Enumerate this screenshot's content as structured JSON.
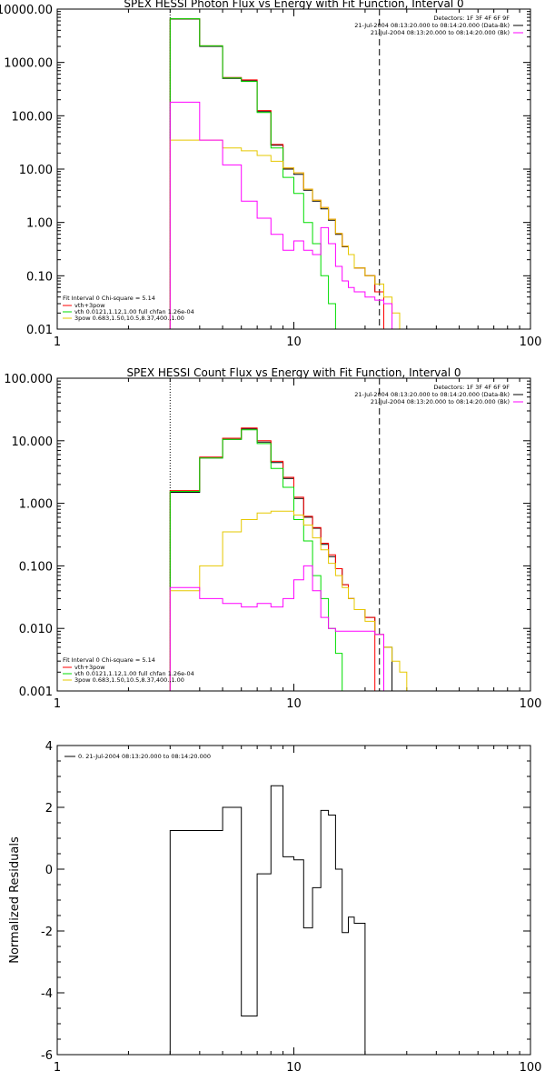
{
  "chart_data": [
    {
      "type": "line",
      "title": "SPEX HESSI Photon Flux vs Energy with Fit Function, Interval 0",
      "xscale": "log",
      "yscale": "log",
      "xlim": [
        1,
        100
      ],
      "ylim": [
        0.01,
        10000
      ],
      "x_ticks": [
        "1",
        "10",
        "100"
      ],
      "y_ticks": [
        "0.01",
        "0.10",
        "1.00",
        "10.00",
        "100.00",
        "1000.00",
        "10000.00"
      ],
      "legend_top_right": [
        "Detectors: 1F 3F 4F 6F 9F",
        "21-Jul-2004 08:13:20.000 to 08:14:20.000 (Data-Bk)",
        "21-Jul-2004 08:13:20.000 to 08:14:20.000 (Bk)"
      ],
      "legend_bottom_left": {
        "header": "Fit Interval 0    Chi-square = 5.14",
        "entries": [
          {
            "label": "vth+3pow",
            "color": "#ff0000"
          },
          {
            "label": "vth 0.0121,1.12,1.00  full chfan 1.26e-04",
            "color": "#00dd00"
          },
          {
            "label": "3pow 0.683,1.50,10.5,8.37,400.,1.00",
            "color": "#e6c800"
          }
        ]
      },
      "vlines": [
        {
          "x": 3,
          "style": "dotted"
        },
        {
          "x": 23,
          "style": "dashed"
        }
      ],
      "edges": [
        3,
        4,
        5,
        6,
        7,
        8,
        9,
        10,
        11,
        12,
        13,
        14,
        15,
        16,
        17,
        18,
        20,
        22,
        24,
        26,
        28,
        30
      ],
      "series": [
        {
          "name": "Data-Bk",
          "color": "#000000",
          "values": [
            6500,
            2000,
            500,
            450,
            120,
            28,
            10,
            8,
            4,
            2.5,
            1.8,
            1.1,
            0.6,
            0.35,
            0.25,
            0.14,
            0.1,
            0.05,
            0.01
          ]
        },
        {
          "name": "vth+3pow",
          "color": "#ff0000",
          "values": [
            6600,
            2050,
            520,
            470,
            125,
            29,
            10.5,
            8.5,
            4.2,
            2.6,
            1.9,
            1.15,
            0.62,
            0.36,
            0.25,
            0.14,
            0.1,
            0.05
          ]
        },
        {
          "name": "vth",
          "color": "#00dd00",
          "values": [
            6600,
            2050,
            510,
            440,
            115,
            25,
            7,
            3.5,
            1,
            0.4,
            0.1,
            0.03,
            0.01
          ]
        },
        {
          "name": "3pow",
          "color": "#e6c800",
          "values": [
            35,
            35,
            25,
            22,
            18,
            14,
            10.5,
            8.5,
            4.2,
            2.6,
            1.9,
            1.15,
            0.62,
            0.36,
            0.25,
            0.14,
            0.1,
            0.07,
            0.04,
            0.02,
            0.01
          ]
        },
        {
          "name": "Bk",
          "color": "#ff00ff",
          "values": [
            180,
            35,
            12,
            2.5,
            1.2,
            0.6,
            0.3,
            0.45,
            0.3,
            0.25,
            0.8,
            0.4,
            0.15,
            0.08,
            0.06,
            0.05,
            0.04,
            0.035,
            0.03,
            0.01
          ]
        }
      ]
    },
    {
      "type": "line",
      "title": "SPEX HESSI Count Flux vs Energy with Fit Function, Interval 0",
      "xscale": "log",
      "yscale": "log",
      "xlim": [
        1,
        100
      ],
      "ylim": [
        0.001,
        100
      ],
      "x_ticks": [
        "1",
        "10",
        "100"
      ],
      "y_ticks": [
        "0.001",
        "0.010",
        "0.100",
        "1.000",
        "10.000",
        "100.000"
      ],
      "legend_top_right": [
        "Detectors: 1F 3F 4F 6F 9F",
        "21-Jul-2004 08:13:20.000 to 08:14:20.000 (Data-Bk)",
        "21-Jul-2004 08:13:20.000 to 08:14:20.000 (Bk)"
      ],
      "legend_bottom_left": {
        "header": "Fit Interval 0    Chi-square = 5.14",
        "entries": [
          {
            "label": "vth+3pow",
            "color": "#ff0000"
          },
          {
            "label": "vth 0.0121,1.12,1.00  full chfan 1.26e-04",
            "color": "#00dd00"
          },
          {
            "label": "3pow 0.683,1.50,10.5,8.37,400.,1.00",
            "color": "#e6c800"
          }
        ]
      },
      "vlines": [
        {
          "x": 3,
          "style": "dotted"
        },
        {
          "x": 23,
          "style": "dashed"
        }
      ],
      "edges": [
        3,
        4,
        5,
        6,
        7,
        8,
        9,
        10,
        11,
        12,
        13,
        14,
        15,
        16,
        17,
        18,
        20,
        22,
        24,
        26,
        28,
        30
      ],
      "series": [
        {
          "name": "Data-Bk",
          "color": "#000000",
          "values": [
            1.5,
            5.3,
            10.5,
            15.5,
            9.5,
            4.5,
            2.5,
            1.2,
            0.6,
            0.4,
            0.22,
            0.14,
            0.09,
            0.05,
            0.03,
            0.02,
            0.015,
            0.008,
            0.005,
            0.001
          ]
        },
        {
          "name": "vth+3pow",
          "color": "#ff0000",
          "values": [
            1.6,
            5.5,
            11,
            16,
            10,
            4.7,
            2.6,
            1.25,
            0.62,
            0.41,
            0.23,
            0.15,
            0.09,
            0.05,
            0.03,
            0.02,
            0.015
          ]
        },
        {
          "name": "vth",
          "color": "#00dd00",
          "values": [
            1.55,
            5.3,
            10.5,
            15,
            9,
            3.6,
            1.8,
            0.55,
            0.25,
            0.07,
            0.03,
            0.01,
            0.004,
            0.001
          ]
        },
        {
          "name": "3pow",
          "color": "#e6c800",
          "values": [
            0.04,
            0.1,
            0.35,
            0.55,
            0.7,
            0.75,
            0.75,
            0.65,
            0.45,
            0.28,
            0.18,
            0.11,
            0.07,
            0.045,
            0.03,
            0.02,
            0.013,
            0.008,
            0.005,
            0.003,
            0.002,
            0.001
          ]
        },
        {
          "name": "Bk",
          "color": "#ff00ff",
          "values": [
            0.045,
            0.03,
            0.025,
            0.022,
            0.025,
            0.022,
            0.03,
            0.06,
            0.1,
            0.04,
            0.015,
            0.01,
            0.009,
            0.009,
            0.009,
            0.009,
            0.009,
            0.008,
            0.001
          ]
        }
      ]
    },
    {
      "type": "line",
      "title": "",
      "xscale": "log",
      "xlim": [
        1,
        100
      ],
      "ylim": [
        -6,
        4
      ],
      "x_ticks": [
        "1",
        "10",
        "100"
      ],
      "y_ticks": [
        "-6",
        "-4",
        "-2",
        "0",
        "2",
        "4"
      ],
      "ylabel": "Normalized Residuals",
      "legend": "0. 21-Jul-2004 08:13:20.000 to 08:14:20.000",
      "edges": [
        3,
        4,
        5,
        6,
        7,
        8,
        9,
        10,
        11,
        12,
        13,
        14,
        15,
        16,
        17,
        18,
        20,
        22
      ],
      "series": [
        {
          "name": "",
          "color": "#000000",
          "values": [
            1.25,
            1.25,
            2.0,
            -4.75,
            -0.15,
            2.7,
            0.4,
            0.3,
            -1.9,
            -0.6,
            1.9,
            1.75,
            0.0,
            -2.05,
            -1.55,
            -1.75
          ]
        }
      ]
    }
  ]
}
